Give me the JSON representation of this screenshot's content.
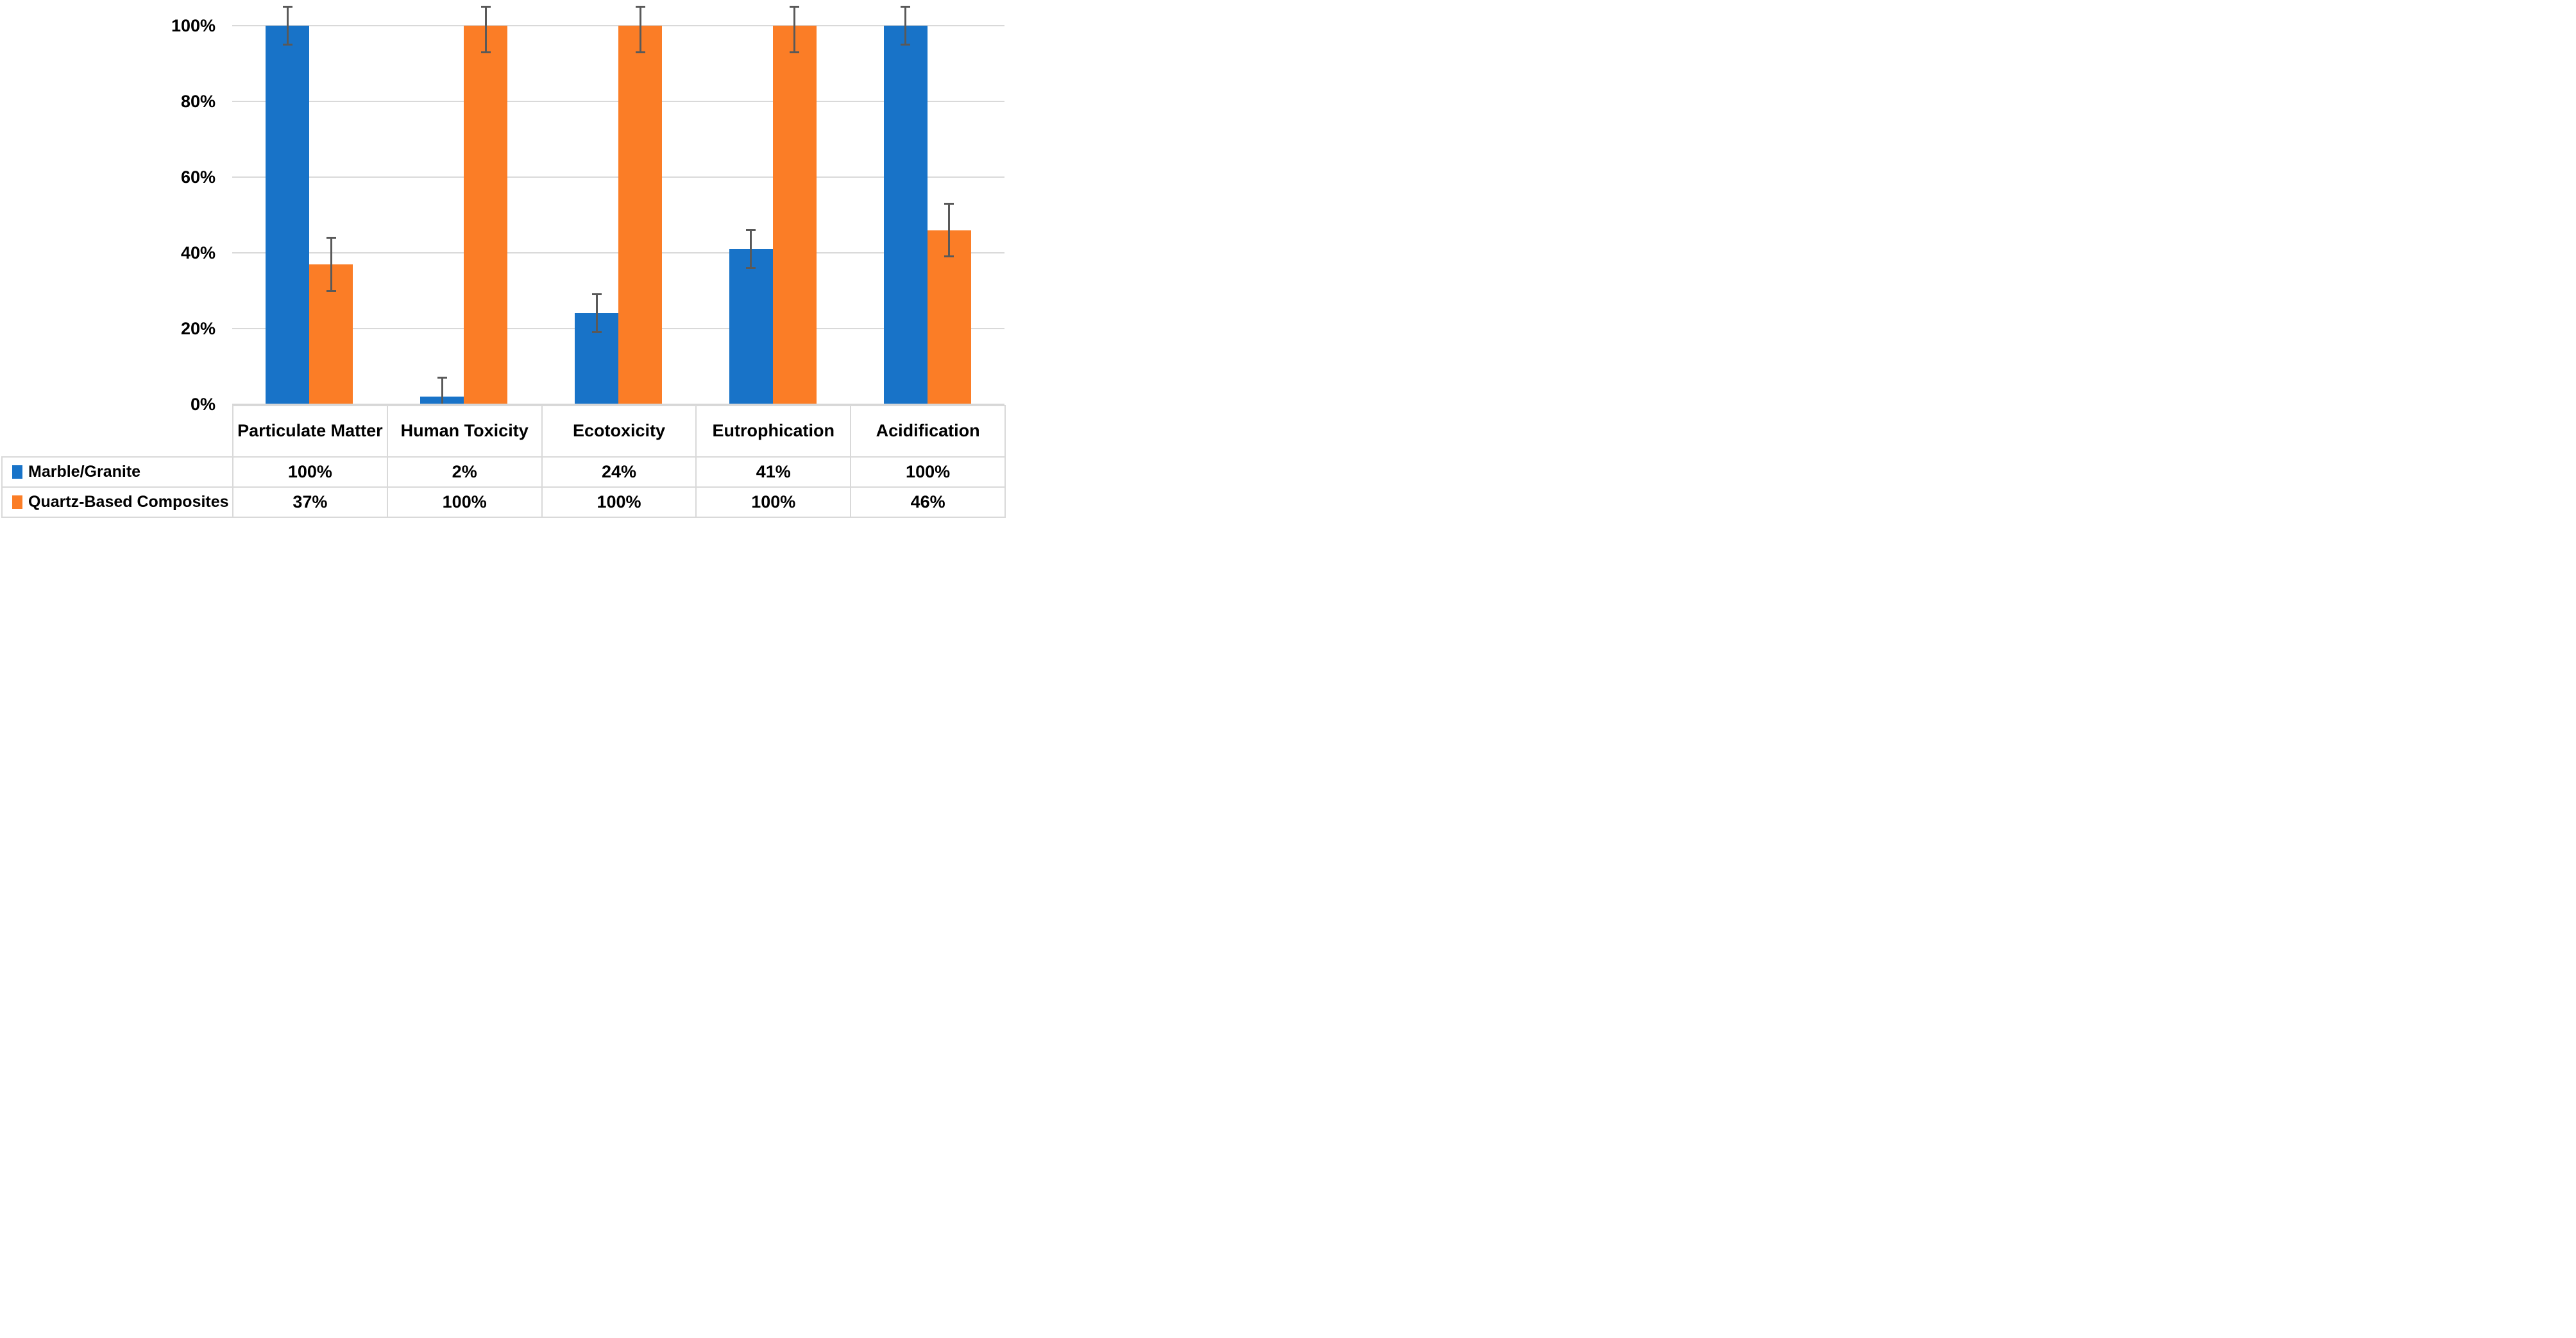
{
  "chart_data": {
    "type": "bar",
    "title": "",
    "xlabel": "",
    "ylabel": "",
    "categories": [
      "Particulate Matter",
      "Human Toxicity",
      "Ecotoxicity",
      "Eutrophication",
      "Acidification"
    ],
    "series": [
      {
        "name": "Marble/Granite",
        "color": "#1873C8",
        "values": [
          100,
          2,
          24,
          41,
          100
        ],
        "value_labels": [
          "100%",
          "2%",
          "24%",
          "41%",
          "100%"
        ],
        "error_minus": [
          5,
          5,
          5,
          5,
          5
        ],
        "error_plus": [
          5,
          5,
          5,
          5,
          5
        ]
      },
      {
        "name": "Quartz-Based Composites",
        "color": "#FB7D26",
        "values": [
          37,
          100,
          100,
          100,
          46
        ],
        "value_labels": [
          "37%",
          "100%",
          "100%",
          "100%",
          "46%"
        ],
        "error_minus": [
          7,
          7,
          7,
          7,
          7
        ],
        "error_plus": [
          7,
          5,
          5,
          5,
          7
        ]
      }
    ],
    "y_axis": {
      "tick_labels": [
        "0%",
        "20%",
        "40%",
        "60%",
        "80%",
        "100%"
      ],
      "tick_values": [
        0,
        20,
        40,
        60,
        80,
        100
      ],
      "min": 0,
      "max": 107
    },
    "grid": true,
    "legend_position": "data-table-left",
    "colors": {
      "gridline": "#D9D9D9",
      "axis_line": "#D7D7D7",
      "error_bar": "#595959",
      "table_border": "#D9D9D9",
      "text": "#000000",
      "background": "#FFFFFF"
    }
  }
}
